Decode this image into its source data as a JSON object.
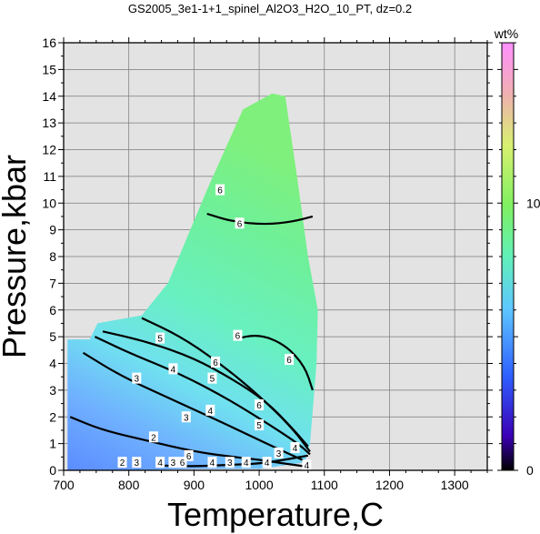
{
  "chart_data": {
    "type": "heatmap",
    "title": "GS2005_3e1-1+1_spinel_Al2O3_H2O_10_PT, dz=0.2",
    "xlabel": "Temperature,C",
    "ylabel": "Pressure,kbar",
    "xlim": [
      700,
      1350
    ],
    "ylim": [
      0,
      16
    ],
    "xticks": [
      700,
      800,
      900,
      1000,
      1100,
      1200,
      1300
    ],
    "yticks": [
      0,
      1,
      2,
      3,
      4,
      5,
      6,
      7,
      8,
      9,
      10,
      11,
      12,
      13,
      14,
      15,
      16
    ],
    "grid": true,
    "background_color": "#e3e3e3",
    "colorbar": {
      "label": "wt%",
      "range": [
        0,
        16
      ],
      "ticks": [
        0,
        10
      ],
      "colors": [
        "#000000",
        "#3b00b5",
        "#2f5fff",
        "#5fc8ff",
        "#60f0b8",
        "#80f060",
        "#d8f070",
        "#f0b0b0",
        "#ff90ff"
      ]
    },
    "field_boundary": [
      [
        706,
        0
      ],
      [
        706,
        4.9
      ],
      [
        740,
        4.9
      ],
      [
        752,
        5.5
      ],
      [
        820,
        5.8
      ],
      [
        860,
        7.0
      ],
      [
        920,
        10.5
      ],
      [
        975,
        13.5
      ],
      [
        1020,
        14.1
      ],
      [
        1040,
        14.0
      ],
      [
        1058,
        11
      ],
      [
        1075,
        8
      ],
      [
        1090,
        6
      ],
      [
        1088,
        4
      ],
      [
        1078,
        1
      ],
      [
        1070,
        0.3
      ],
      [
        1000,
        0.05
      ],
      [
        900,
        0.05
      ],
      [
        800,
        0
      ]
    ],
    "contour_lines": [
      {
        "level": 2,
        "points": [
          [
            710,
            2.0
          ],
          [
            760,
            1.5
          ],
          [
            830,
            1.1
          ],
          [
            900,
            0.7
          ],
          [
            960,
            0.5
          ],
          [
            1000,
            0.4
          ],
          [
            1040,
            0.25
          ],
          [
            1070,
            0.15
          ]
        ]
      },
      {
        "level": 3,
        "points": [
          [
            730,
            4.4
          ],
          [
            790,
            3.5
          ],
          [
            880,
            2.5
          ],
          [
            960,
            1.6
          ],
          [
            1020,
            0.9
          ],
          [
            1070,
            0.35
          ]
        ]
      },
      {
        "level": 4,
        "points": [
          [
            748,
            5.0
          ],
          [
            800,
            4.4
          ],
          [
            880,
            3.6
          ],
          [
            950,
            2.7
          ],
          [
            1010,
            1.8
          ],
          [
            1060,
            1.0
          ],
          [
            1078,
            0.6
          ]
        ]
      },
      {
        "level": 5,
        "points": [
          [
            760,
            5.2
          ],
          [
            830,
            4.8
          ],
          [
            900,
            4.2
          ],
          [
            960,
            3.4
          ],
          [
            1010,
            2.6
          ],
          [
            1050,
            1.6
          ],
          [
            1075,
            0.9
          ]
        ]
      },
      {
        "level": 6,
        "points": [
          [
            820,
            5.7
          ],
          [
            880,
            5.0
          ],
          [
            940,
            4.0
          ],
          [
            1000,
            2.8
          ],
          [
            1050,
            1.6
          ],
          [
            1078,
            0.7
          ]
        ]
      },
      {
        "level": 6,
        "points": [
          [
            960,
            4.9
          ],
          [
            1000,
            5.1
          ],
          [
            1040,
            4.7
          ],
          [
            1070,
            3.9
          ],
          [
            1082,
            3.0
          ]
        ]
      },
      {
        "level": 6,
        "points": [
          [
            920,
            9.6
          ],
          [
            960,
            9.3
          ],
          [
            1010,
            9.2
          ],
          [
            1050,
            9.3
          ],
          [
            1082,
            9.5
          ]
        ]
      },
      {
        "level": 6,
        "points": [
          [
            1075,
            0.55
          ],
          [
            1040,
            0.4
          ],
          [
            1000,
            0.25
          ],
          [
            950,
            0.2
          ],
          [
            900,
            0.15
          ],
          [
            850,
            0.18
          ]
        ]
      }
    ],
    "contour_labels": [
      {
        "text": "2",
        "x": 790,
        "y": 0.3
      },
      {
        "text": "2",
        "x": 838,
        "y": 1.25
      },
      {
        "text": "3",
        "x": 812,
        "y": 0.3
      },
      {
        "text": "3",
        "x": 868,
        "y": 0.3
      },
      {
        "text": "3",
        "x": 955,
        "y": 0.3
      },
      {
        "text": "3",
        "x": 812,
        "y": 3.45
      },
      {
        "text": "3",
        "x": 888,
        "y": 2.0
      },
      {
        "text": "3",
        "x": 1030,
        "y": 0.65
      },
      {
        "text": "4",
        "x": 848,
        "y": 0.3
      },
      {
        "text": "4",
        "x": 928,
        "y": 0.3
      },
      {
        "text": "4",
        "x": 980,
        "y": 0.3
      },
      {
        "text": "4",
        "x": 1012,
        "y": 0.3
      },
      {
        "text": "4",
        "x": 1073,
        "y": 0.2
      },
      {
        "text": "4",
        "x": 868,
        "y": 3.8
      },
      {
        "text": "4",
        "x": 925,
        "y": 2.25
      },
      {
        "text": "4",
        "x": 1055,
        "y": 0.85
      },
      {
        "text": "5",
        "x": 848,
        "y": 4.95
      },
      {
        "text": "5",
        "x": 928,
        "y": 3.45
      },
      {
        "text": "5",
        "x": 1000,
        "y": 1.7
      },
      {
        "text": "6",
        "x": 882,
        "y": 0.3
      },
      {
        "text": "6",
        "x": 892,
        "y": 0.55
      },
      {
        "text": "6",
        "x": 1000,
        "y": 2.45
      },
      {
        "text": "6",
        "x": 933,
        "y": 4.05
      },
      {
        "text": "6",
        "x": 967,
        "y": 5.05
      },
      {
        "text": "6",
        "x": 1046,
        "y": 4.15
      },
      {
        "text": "6",
        "x": 940,
        "y": 10.5
      },
      {
        "text": "6",
        "x": 970,
        "y": 9.25
      }
    ]
  }
}
